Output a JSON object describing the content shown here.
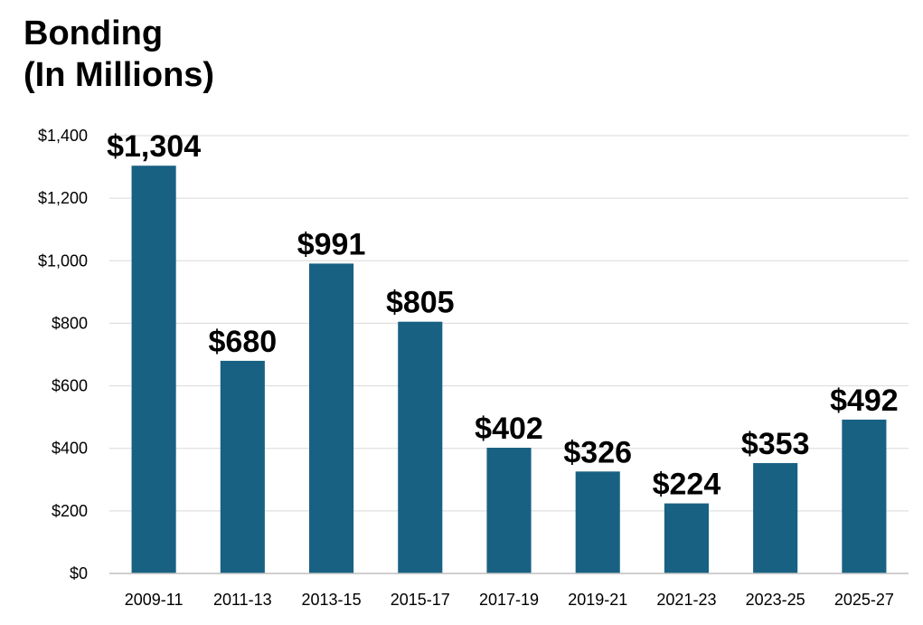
{
  "chart_data": {
    "type": "bar",
    "title_line1": "Bonding",
    "title_line2": "(In Millions)",
    "xlabel": "",
    "ylabel": "",
    "categories": [
      "2009-11",
      "2011-13",
      "2013-15",
      "2015-17",
      "2017-19",
      "2019-21",
      "2021-23",
      "2023-25",
      "2025-27"
    ],
    "values": [
      1304,
      680,
      991,
      805,
      402,
      326,
      224,
      353,
      492
    ],
    "data_labels": [
      "$1,304",
      "$680",
      "$991",
      "$805",
      "$402",
      "$326",
      "$224",
      "$353",
      "$492"
    ],
    "ylim": [
      0,
      1400
    ],
    "yticks": [
      0,
      200,
      400,
      600,
      800,
      1000,
      1200,
      1400
    ],
    "ytick_labels": [
      "$0",
      "$200",
      "$400",
      "$600",
      "$800",
      "$1,000",
      "$1,200",
      "$1,400"
    ],
    "grid": true,
    "legend": "none",
    "bar_color": "#186183"
  }
}
